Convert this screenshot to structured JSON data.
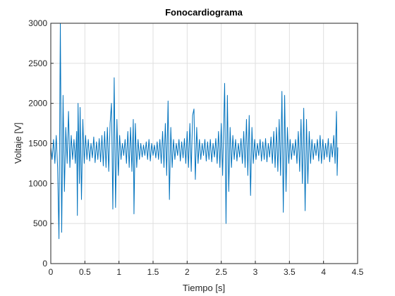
{
  "chart_data": {
    "type": "line",
    "title": "Fonocardiograma",
    "xlabel": "Tiempo [s]",
    "ylabel": "Voltaje [V]",
    "xlim": [
      0,
      4.5
    ],
    "ylim": [
      0,
      3000
    ],
    "xticks": [
      0,
      0.5,
      1,
      1.5,
      2,
      2.5,
      3,
      3.5,
      4,
      4.5
    ],
    "yticks": [
      0,
      500,
      1000,
      1500,
      2000,
      2500,
      3000
    ],
    "grid": true,
    "series": [
      {
        "name": "Fonocardiograma",
        "color": "#0072bd",
        "x": [
          0,
          0.02,
          0.04,
          0.06,
          0.08,
          0.1,
          0.12,
          0.14,
          0.16,
          0.18,
          0.2,
          0.22,
          0.24,
          0.26,
          0.28,
          0.3,
          0.32,
          0.34,
          0.36,
          0.38,
          0.39,
          0.4,
          0.42,
          0.43,
          0.45,
          0.47,
          0.49,
          0.51,
          0.53,
          0.55,
          0.57,
          0.59,
          0.61,
          0.63,
          0.65,
          0.67,
          0.69,
          0.71,
          0.73,
          0.75,
          0.77,
          0.79,
          0.81,
          0.83,
          0.85,
          0.87,
          0.89,
          0.91,
          0.93,
          0.95,
          0.97,
          0.99,
          1.01,
          1.03,
          1.05,
          1.07,
          1.09,
          1.11,
          1.13,
          1.15,
          1.17,
          1.19,
          1.21,
          1.22,
          1.24,
          1.26,
          1.28,
          1.3,
          1.32,
          1.34,
          1.36,
          1.38,
          1.4,
          1.42,
          1.44,
          1.46,
          1.48,
          1.5,
          1.52,
          1.54,
          1.56,
          1.58,
          1.6,
          1.62,
          1.64,
          1.66,
          1.68,
          1.7,
          1.72,
          1.74,
          1.76,
          1.78,
          1.8,
          1.82,
          1.84,
          1.86,
          1.88,
          1.9,
          1.92,
          1.94,
          1.96,
          1.98,
          2.0,
          2.02,
          2.04,
          2.06,
          2.08,
          2.1,
          2.12,
          2.14,
          2.16,
          2.18,
          2.2,
          2.22,
          2.24,
          2.26,
          2.28,
          2.3,
          2.32,
          2.34,
          2.36,
          2.38,
          2.4,
          2.42,
          2.44,
          2.46,
          2.48,
          2.5,
          2.52,
          2.55,
          2.57,
          2.59,
          2.61,
          2.63,
          2.65,
          2.67,
          2.69,
          2.71,
          2.73,
          2.75,
          2.77,
          2.79,
          2.81,
          2.83,
          2.85,
          2.87,
          2.89,
          2.91,
          2.93,
          2.95,
          2.97,
          2.99,
          3.01,
          3.03,
          3.05,
          3.07,
          3.09,
          3.11,
          3.13,
          3.15,
          3.17,
          3.19,
          3.21,
          3.23,
          3.25,
          3.27,
          3.29,
          3.31,
          3.33,
          3.35,
          3.37,
          3.39,
          3.41,
          3.43,
          3.45,
          3.47,
          3.49,
          3.51,
          3.53,
          3.55,
          3.57,
          3.59,
          3.61,
          3.63,
          3.65,
          3.67,
          3.69,
          3.71,
          3.73,
          3.75,
          3.77,
          3.79,
          3.81,
          3.83,
          3.85,
          3.87,
          3.89,
          3.91,
          3.93,
          3.95,
          3.97,
          3.99,
          4.01,
          4.03,
          4.05,
          4.07,
          4.09,
          4.11,
          4.13,
          4.15,
          4.17,
          4.19,
          4.2,
          4.21
        ],
        "values": [
          1450,
          1300,
          1550,
          1250,
          1600,
          1200,
          310,
          3000,
          390,
          2100,
          900,
          1700,
          1250,
          1900,
          1200,
          1600,
          1300,
          1550,
          1250,
          1650,
          600,
          2000,
          1000,
          1950,
          800,
          1800,
          1250,
          1600,
          1300,
          1550,
          1280,
          1500,
          1320,
          1580,
          1260,
          1520,
          1300,
          1560,
          1270,
          1600,
          1220,
          1650,
          1200,
          1700,
          1150,
          1750,
          2000,
          680,
          2320,
          700,
          1800,
          1100,
          1600,
          1300,
          1500,
          1350,
          1550,
          1250,
          1650,
          1200,
          1700,
          1150,
          1800,
          620,
          1750,
          1200,
          1550,
          1300,
          1500,
          1330,
          1480,
          1350,
          1520,
          1300,
          1550,
          1280,
          1500,
          1350,
          1480,
          1320,
          1520,
          1300,
          1550,
          1250,
          1650,
          1200,
          1750,
          1100,
          2030,
          800,
          1700,
          1200,
          1550,
          1300,
          1500,
          1350,
          1550,
          1280,
          1520,
          1320,
          1560,
          1250,
          1650,
          1200,
          1750,
          1150,
          1850,
          1930,
          1050,
          1700,
          1250,
          1550,
          1300,
          1500,
          1350,
          1550,
          1280,
          1520,
          1300,
          1550,
          1270,
          1500,
          1330,
          1560,
          1250,
          1650,
          1200,
          1750,
          1100,
          2250,
          500,
          2100,
          900,
          1700,
          1200,
          1600,
          1300,
          1550,
          1280,
          1500,
          1330,
          1560,
          1250,
          1650,
          1200,
          1800,
          1100,
          1850,
          850,
          1700,
          1250,
          1550,
          1300,
          1500,
          1350,
          1550,
          1280,
          1520,
          1300,
          1560,
          1270,
          1500,
          1330,
          1580,
          1250,
          1650,
          1200,
          1700,
          1150,
          1800,
          1100,
          2150,
          640,
          2100,
          900,
          1700,
          1250,
          1550,
          1300,
          1500,
          1350,
          1550,
          1250,
          1650,
          1150,
          1800,
          1000,
          1940,
          660,
          1800,
          1000,
          1650,
          1250,
          1550,
          1300,
          1500,
          1350,
          1550,
          1280,
          1600,
          1250,
          1550,
          1300,
          1500,
          1330,
          1560,
          1270,
          1500,
          1330,
          1600,
          1250,
          1900,
          1100,
          1450
        ]
      }
    ]
  }
}
